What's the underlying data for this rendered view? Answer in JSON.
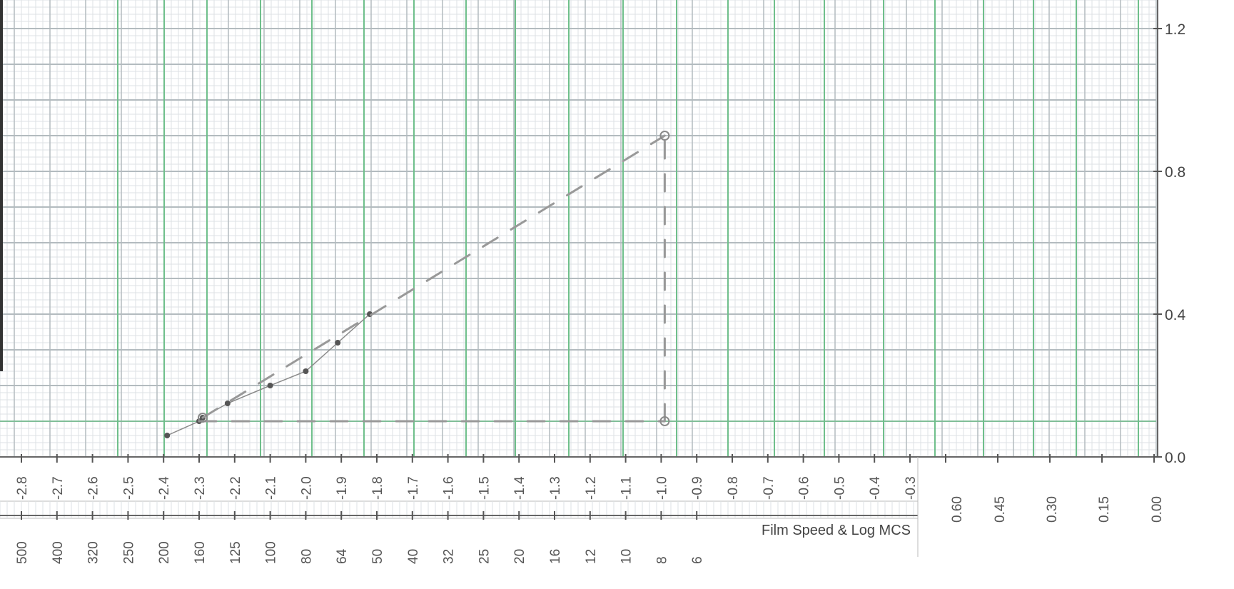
{
  "chart_data": {
    "type": "line",
    "title": "",
    "log_exposure_axis": {
      "ticks": [
        "-2.8",
        "-2.7",
        "-2.6",
        "-2.5",
        "-2.4",
        "-2.3",
        "-2.2",
        "-2.1",
        "-2.0",
        "-1.9",
        "-1.8",
        "-1.7",
        "-1.6",
        "-1.5",
        "-1.4",
        "-1.3",
        "-1.2",
        "-1.1",
        "-1.0",
        "-0.9",
        "-0.8",
        "-0.7",
        "-0.6",
        "-0.5",
        "-0.4",
        "-0.3"
      ]
    },
    "film_speed_axis": {
      "title": "Film Speed & Log MCS",
      "ticks": [
        "500",
        "400",
        "320",
        "250",
        "200",
        "160",
        "125",
        "100",
        "80",
        "64",
        "50",
        "40",
        "32",
        "25",
        "20",
        "16",
        "12",
        "10",
        "8",
        "6"
      ]
    },
    "density_scale_labels": [
      "0.60",
      "0.45",
      "0.30",
      "0.15",
      "0.00"
    ],
    "y_axis": {
      "ticks": [
        "1.2",
        "0.8",
        "0.4",
        "0.0"
      ],
      "ylim": [
        0.0,
        1.3
      ]
    },
    "xlim": [
      -2.85,
      -0.26
    ],
    "grid": true,
    "series": [
      {
        "style": "points",
        "x": [
          -2.39,
          -2.3,
          -2.29,
          -2.22,
          -2.1,
          -2.0,
          -1.91,
          -1.82
        ],
        "y": [
          0.06,
          0.1,
          0.11,
          0.15,
          0.2,
          0.24,
          0.32,
          0.4
        ]
      },
      {
        "style": "dashed",
        "x": [
          -2.29,
          -0.99
        ],
        "y": [
          0.11,
          0.9
        ]
      },
      {
        "style": "dashed",
        "x": [
          -2.3,
          -0.99
        ],
        "y": [
          0.1,
          0.1
        ]
      },
      {
        "style": "dashed",
        "x": [
          -0.99,
          -0.99
        ],
        "y": [
          0.1,
          0.9
        ]
      }
    ]
  },
  "colors": {
    "paper": "#ffffff",
    "grid_fine": "#dde2e4",
    "grid_major": "#b3bbbf",
    "grid_green": "#6fbf8b",
    "pencil": "#8a8a8a",
    "dash": "#999999",
    "point": "#555555",
    "text": "#555555"
  }
}
